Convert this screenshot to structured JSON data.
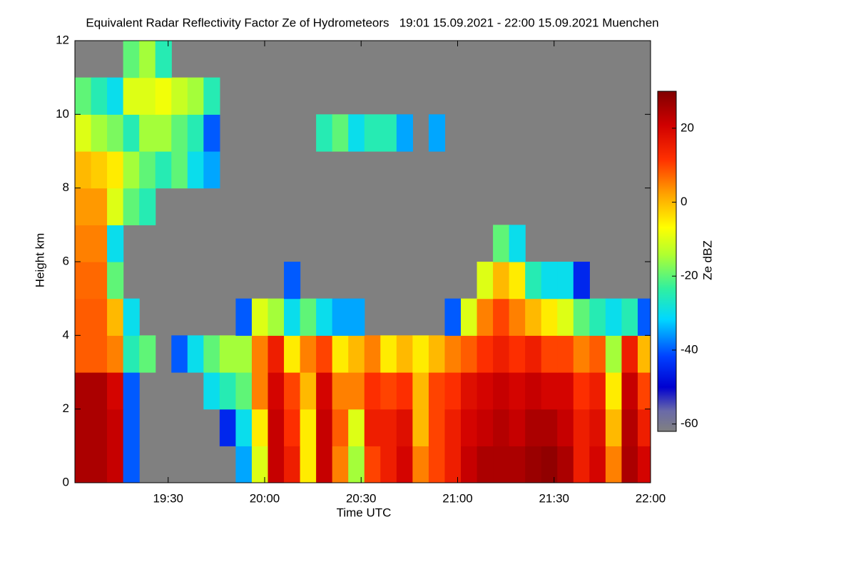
{
  "chart_data": {
    "type": "heatmap",
    "title": "Equivalent Radar Reflectivity Factor Ze of Hydrometeors   19:01 15.09.2021 - 22:00 15.09.2021 Muenchen",
    "x_label": "Time UTC",
    "y_label": "Height km",
    "colorbar_label": "Ze dBZ",
    "xlim": [
      1141,
      1320
    ],
    "xticks": [
      {
        "value": 1170,
        "label": "19:30"
      },
      {
        "value": 1200,
        "label": "20:00"
      },
      {
        "value": 1230,
        "label": "20:30"
      },
      {
        "value": 1260,
        "label": "21:00"
      },
      {
        "value": 1290,
        "label": "21:30"
      },
      {
        "value": 1320,
        "label": "22:00"
      }
    ],
    "ylim": [
      0,
      12
    ],
    "yticks": [
      0,
      2,
      4,
      6,
      8,
      10,
      12
    ],
    "zlim": [
      -62,
      30
    ],
    "zticks": [
      -60,
      -40,
      -20,
      0,
      20
    ],
    "background_color": "#808080",
    "xbins": [
      1141,
      1146,
      1151,
      1156,
      1161,
      1166,
      1171,
      1176,
      1181,
      1186,
      1191,
      1196,
      1201,
      1206,
      1211,
      1216,
      1221,
      1226,
      1231,
      1236,
      1241,
      1246,
      1251,
      1256,
      1261,
      1266,
      1271,
      1276,
      1281,
      1286,
      1291,
      1296,
      1301,
      1306,
      1311,
      1316,
      1320
    ],
    "ybins": [
      0,
      1,
      2,
      3,
      4,
      5,
      6,
      7,
      8,
      9,
      10,
      11,
      12
    ],
    "z": [
      [
        25,
        25,
        22,
        -40,
        null,
        null,
        null,
        null,
        null,
        null,
        -35,
        -10,
        22,
        15,
        -5,
        22,
        5,
        -15,
        10,
        15,
        20,
        5,
        10,
        15,
        22,
        25,
        25,
        25,
        27,
        28,
        25,
        15,
        20,
        5,
        25,
        20
      ],
      [
        25,
        25,
        22,
        -40,
        null,
        null,
        null,
        null,
        null,
        -45,
        -30,
        -5,
        22,
        12,
        -5,
        22,
        8,
        -10,
        15,
        15,
        18,
        0,
        10,
        15,
        20,
        22,
        24,
        22,
        25,
        25,
        22,
        15,
        18,
        0,
        24,
        15
      ],
      [
        25,
        25,
        20,
        -40,
        null,
        null,
        null,
        null,
        -30,
        -25,
        -20,
        5,
        20,
        10,
        0,
        20,
        5,
        5,
        12,
        10,
        12,
        0,
        10,
        12,
        18,
        20,
        22,
        20,
        22,
        20,
        20,
        12,
        15,
        -5,
        22,
        10
      ],
      [
        8,
        8,
        5,
        -25,
        -20,
        null,
        -40,
        -30,
        -20,
        -15,
        -15,
        5,
        15,
        -5,
        5,
        10,
        -5,
        0,
        5,
        -5,
        0,
        -5,
        0,
        5,
        8,
        12,
        15,
        12,
        15,
        10,
        10,
        5,
        8,
        -15,
        15,
        0
      ],
      [
        8,
        8,
        0,
        -30,
        null,
        null,
        null,
        null,
        null,
        null,
        -40,
        -10,
        -15,
        -30,
        -20,
        -30,
        -35,
        -35,
        null,
        null,
        null,
        null,
        null,
        -40,
        -10,
        5,
        10,
        5,
        0,
        -5,
        -10,
        -20,
        -25,
        -30,
        -25,
        -40
      ],
      [
        7,
        7,
        -20,
        null,
        null,
        null,
        null,
        null,
        null,
        null,
        null,
        null,
        null,
        -40,
        null,
        null,
        null,
        null,
        null,
        null,
        null,
        null,
        null,
        null,
        null,
        -10,
        0,
        -5,
        -25,
        -30,
        -30,
        -45,
        null,
        null,
        null,
        null
      ],
      [
        5,
        5,
        -30,
        null,
        null,
        null,
        null,
        null,
        null,
        null,
        null,
        null,
        null,
        null,
        null,
        null,
        null,
        null,
        null,
        null,
        null,
        null,
        null,
        null,
        null,
        null,
        -20,
        -30,
        null,
        null,
        null,
        null,
        null,
        null,
        null,
        null
      ],
      [
        3,
        3,
        -10,
        -20,
        -25,
        null,
        null,
        null,
        null,
        null,
        null,
        null,
        null,
        null,
        null,
        null,
        null,
        null,
        null,
        null,
        null,
        null,
        null,
        null,
        null,
        null,
        null,
        null,
        null,
        null,
        null,
        null,
        null,
        null,
        null,
        null
      ],
      [
        0,
        -2,
        -5,
        -15,
        -20,
        -25,
        -20,
        -30,
        -35,
        null,
        null,
        null,
        null,
        null,
        null,
        null,
        null,
        null,
        null,
        null,
        null,
        null,
        null,
        null,
        null,
        null,
        null,
        null,
        null,
        null,
        null,
        null,
        null,
        null,
        null,
        null
      ],
      [
        -10,
        -15,
        -18,
        -25,
        -15,
        -15,
        -20,
        -25,
        -40,
        null,
        null,
        null,
        null,
        null,
        null,
        -25,
        -20,
        -30,
        -25,
        -25,
        -35,
        null,
        -35,
        null,
        null,
        null,
        null,
        null,
        null,
        null,
        null,
        null,
        null,
        null,
        null,
        null
      ],
      [
        -20,
        -25,
        -30,
        -10,
        -10,
        -8,
        -12,
        -15,
        -25,
        null,
        null,
        null,
        null,
        null,
        null,
        null,
        null,
        null,
        null,
        null,
        null,
        null,
        null,
        null,
        null,
        null,
        null,
        null,
        null,
        null,
        null,
        null,
        null,
        null,
        null,
        null
      ],
      [
        null,
        null,
        null,
        -20,
        -15,
        -25,
        null,
        null,
        null,
        null,
        null,
        null,
        null,
        null,
        null,
        null,
        null,
        null,
        null,
        null,
        null,
        null,
        null,
        null,
        null,
        null,
        null,
        null,
        null,
        null,
        null,
        null,
        null,
        null,
        null,
        null
      ]
    ]
  }
}
